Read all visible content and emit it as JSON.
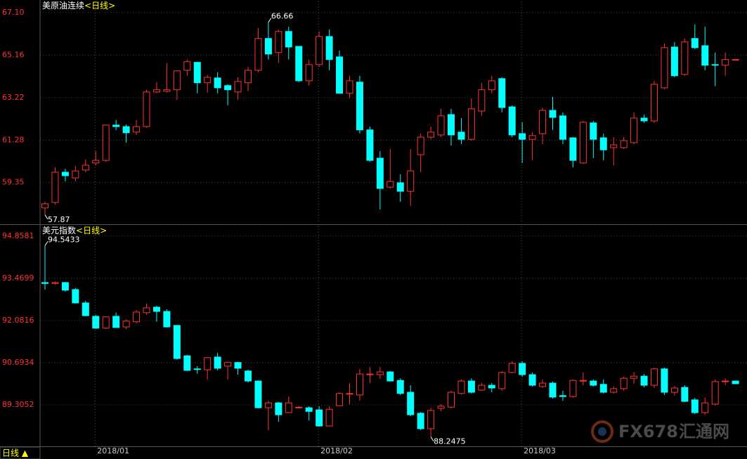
{
  "chart_data": [
    {
      "type": "candlestick",
      "title": "美原油连续",
      "period": "<日线>",
      "up_color": "#ff3232",
      "down_color": "#00ffff",
      "grid": true,
      "ylim": [
        57.48,
        67.61
      ],
      "yticks": [
        {
          "value": 67.1,
          "label": "67.10"
        },
        65.16,
        63.22,
        61.28,
        59.35
      ],
      "max_label": "66.66",
      "min_label": "57.87",
      "open": [
        58.19,
        58.44,
        59.82,
        59.56,
        59.92,
        60.24,
        60.36,
        61.97,
        61.9,
        61.65,
        61.9,
        63.48,
        63.51,
        63.58,
        64.47,
        64.83,
        63.9,
        64.12,
        63.77,
        63.48,
        63.9,
        64.47,
        65.92,
        65.28,
        66.24,
        65.56,
        63.99,
        64.73,
        66.01,
        65.08,
        63.42,
        63.93,
        61.75,
        60.46,
        59.14,
        59.34,
        58.95,
        60.62,
        61.42,
        61.52,
        62.45,
        61.65,
        61.32,
        62.61,
        63.58,
        64.09,
        62.8,
        61.58,
        61.32,
        61.58,
        62.64,
        62.39,
        61.39,
        60.24,
        62.07,
        61.39,
        60.94,
        60.94,
        61.17,
        62.29,
        62.16,
        63.67,
        65.53,
        64.28,
        65.92,
        65.59,
        64.73,
        64.7,
        64.96
      ],
      "high": [
        58.48,
        60.04,
        59.98,
        60.1,
        60.4,
        60.78,
        62.0,
        62.2,
        62.0,
        62.2,
        63.58,
        63.93,
        64.8,
        64.47,
        64.96,
        64.86,
        64.25,
        64.38,
        63.83,
        64.15,
        64.63,
        66.4,
        66.66,
        66.33,
        66.46,
        65.56,
        64.96,
        66.24,
        66.33,
        65.37,
        64.22,
        64.22,
        61.9,
        60.78,
        60.88,
        59.72,
        60.88,
        61.58,
        61.9,
        62.71,
        62.71,
        62.29,
        63.19,
        63.9,
        64.22,
        64.15,
        62.87,
        62.1,
        61.65,
        62.77,
        63.26,
        62.55,
        61.42,
        62.16,
        62.16,
        61.58,
        61.42,
        61.42,
        62.55,
        62.45,
        63.99,
        65.69,
        65.76,
        65.92,
        66.56,
        66.46,
        65.28,
        65.28,
        64.96
      ],
      "low": [
        57.87,
        58.35,
        59.4,
        59.4,
        59.82,
        60.14,
        60.3,
        61.75,
        61.17,
        61.52,
        61.85,
        63.42,
        63.45,
        63.12,
        64.22,
        63.42,
        63.45,
        63.42,
        62.87,
        63.12,
        63.51,
        64.38,
        64.96,
        64.8,
        64.96,
        63.93,
        63.77,
        64.63,
        64.47,
        63.42,
        63.19,
        61.58,
        60.3,
        58.12,
        59.08,
        58.47,
        58.28,
        59.82,
        61.32,
        61.42,
        61.04,
        61.1,
        61.26,
        62.39,
        63.42,
        62.55,
        61.42,
        60.24,
        60.36,
        61.1,
        61.75,
        61.1,
        60.04,
        60.2,
        60.46,
        60.36,
        60.14,
        60.88,
        61.1,
        62.07,
        62.07,
        63.61,
        64.15,
        64.22,
        65.43,
        64.47,
        63.74,
        64.22,
        64.96
      ],
      "close": [
        58.38,
        59.82,
        59.66,
        59.88,
        60.14,
        60.36,
        61.97,
        61.9,
        61.62,
        61.9,
        63.48,
        63.58,
        63.58,
        64.44,
        64.86,
        63.9,
        64.15,
        63.67,
        63.58,
        63.96,
        64.47,
        65.92,
        65.21,
        66.24,
        65.53,
        63.99,
        64.73,
        66.01,
        64.96,
        63.42,
        63.99,
        61.75,
        60.36,
        59.08,
        59.4,
        58.95,
        59.88,
        61.42,
        61.65,
        62.39,
        61.52,
        61.32,
        62.71,
        63.58,
        63.99,
        62.77,
        61.52,
        61.32,
        61.49,
        62.64,
        62.32,
        61.32,
        60.36,
        62.1,
        61.32,
        60.84,
        61.07,
        61.26,
        62.29,
        62.16,
        63.83,
        65.5,
        64.22,
        65.76,
        65.5,
        64.7,
        64.7,
        64.96,
        64.96
      ]
    },
    {
      "type": "candlestick",
      "title": "美元指数",
      "period": "<日线>",
      "up_color": "#ff3232",
      "down_color": "#00ffff",
      "grid": true,
      "ylim": [
        87.94,
        95.18
      ],
      "yticks": [
        94.8581,
        93.4699,
        92.0816,
        90.6934,
        89.3052
      ],
      "max_label": "94.5433",
      "min_label": "88.2475",
      "categories": [
        null,
        null,
        null,
        null,
        null,
        "2018/01",
        null,
        null,
        null,
        null,
        null,
        null,
        null,
        null,
        null,
        null,
        null,
        null,
        null,
        null,
        null,
        null,
        null,
        null,
        null,
        null,
        null,
        "2018/02",
        null,
        null,
        null,
        null,
        null,
        null,
        null,
        null,
        null,
        null,
        null,
        null,
        null,
        null,
        null,
        null,
        null,
        null,
        null,
        "2018/03",
        null,
        null,
        null,
        null,
        null,
        null,
        null,
        null,
        null,
        null,
        null,
        null,
        null,
        null,
        null,
        null,
        null,
        null,
        null,
        null,
        null
      ],
      "open": [
        93.33,
        93.3,
        93.33,
        93.1,
        92.66,
        92.22,
        91.83,
        92.22,
        91.87,
        92.04,
        92.34,
        92.52,
        92.38,
        91.92,
        90.92,
        90.49,
        90.46,
        90.88,
        90.58,
        90.7,
        90.42,
        90.09,
        89.21,
        89.37,
        89.05,
        89.21,
        89.21,
        89.14,
        88.61,
        89.28,
        89.68,
        89.63,
        90.32,
        90.3,
        90.39,
        90.11,
        89.72,
        89.03,
        88.52,
        89.19,
        89.23,
        89.68,
        90.09,
        89.79,
        89.95,
        89.84,
        90.37,
        90.67,
        90.3,
        89.91,
        90.02,
        89.61,
        89.58,
        90.11,
        90.09,
        89.98,
        89.72,
        89.84,
        90.18,
        90.25,
        89.95,
        90.49,
        89.72,
        89.88,
        89.47,
        89.05,
        89.33,
        90.07,
        90.09
      ],
      "high": [
        94.5433,
        93.37,
        93.35,
        93.15,
        92.73,
        92.27,
        92.22,
        92.34,
        92.11,
        92.43,
        92.64,
        92.57,
        92.45,
        91.92,
        90.95,
        90.58,
        90.88,
        91.02,
        90.72,
        90.72,
        90.46,
        90.11,
        89.44,
        89.4,
        89.58,
        89.26,
        89.26,
        89.26,
        89.26,
        89.72,
        90.02,
        90.49,
        90.55,
        90.55,
        90.42,
        90.18,
        89.95,
        89.07,
        89.21,
        89.33,
        89.77,
        90.14,
        90.18,
        90.02,
        90.02,
        90.42,
        90.74,
        90.74,
        90.37,
        90.14,
        90.07,
        89.77,
        90.14,
        90.37,
        90.14,
        90.14,
        89.91,
        90.23,
        90.39,
        90.32,
        90.53,
        90.53,
        89.93,
        89.95,
        89.54,
        89.54,
        90.14,
        90.18,
        90.09
      ],
      "low": [
        93.1,
        93.26,
        93.03,
        92.64,
        92.22,
        91.8,
        91.8,
        91.85,
        91.8,
        91.99,
        92.27,
        92.04,
        91.85,
        90.79,
        90.42,
        90.33,
        90.14,
        90.44,
        90.14,
        90.3,
        90.04,
        89.19,
        88.47,
        88.75,
        89.03,
        89.19,
        88.79,
        88.59,
        88.59,
        89.26,
        89.33,
        89.44,
        90.02,
        90.16,
        90.07,
        89.63,
        88.93,
        88.47,
        88.2475,
        89.1,
        89.19,
        89.65,
        89.68,
        89.77,
        89.72,
        89.77,
        90.35,
        90.23,
        89.91,
        89.86,
        89.51,
        89.44,
        89.54,
        89.95,
        89.91,
        89.68,
        89.68,
        89.77,
        90.0,
        89.88,
        89.86,
        89.63,
        89.61,
        89.4,
        89.0,
        88.98,
        89.28,
        89.95,
        90.0
      ],
      "close": [
        93.3,
        93.33,
        93.08,
        92.66,
        92.24,
        91.83,
        92.2,
        91.85,
        92.06,
        92.36,
        92.5,
        92.38,
        91.87,
        90.83,
        90.44,
        90.47,
        90.86,
        90.51,
        90.7,
        90.51,
        90.09,
        89.21,
        89.37,
        88.98,
        89.37,
        89.23,
        89.09,
        88.61,
        89.16,
        89.68,
        89.68,
        90.32,
        90.32,
        90.39,
        90.09,
        89.68,
        88.98,
        88.52,
        89.12,
        89.26,
        89.72,
        90.09,
        89.72,
        89.95,
        89.86,
        90.37,
        90.67,
        90.3,
        89.95,
        90.02,
        89.56,
        89.58,
        90.11,
        90.11,
        89.95,
        89.72,
        89.84,
        90.18,
        90.25,
        89.95,
        90.49,
        89.72,
        89.86,
        89.42,
        89.05,
        89.37,
        90.07,
        90.09,
        90.0
      ]
    }
  ],
  "toolbar": {
    "period": "日线 ▲"
  },
  "watermark": {
    "brand": "FX678",
    "site": "汇通网"
  }
}
